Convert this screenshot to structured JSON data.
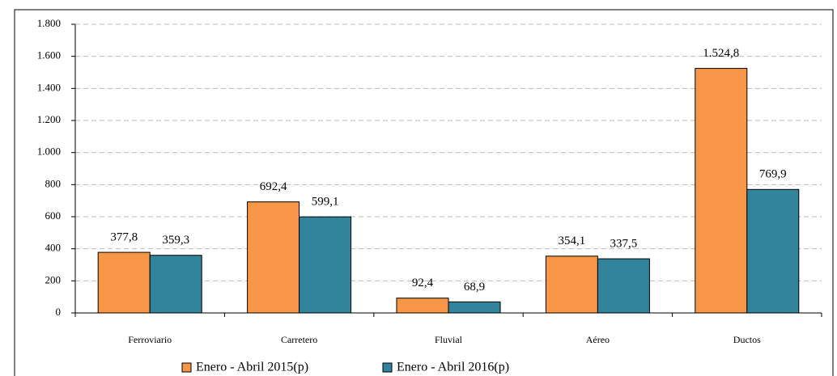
{
  "chart_data": {
    "type": "bar",
    "categories": [
      "Ferroviario",
      "Carretero",
      "Fluvial",
      "Aéreo",
      "Ductos"
    ],
    "series": [
      {
        "name": "Enero - Abril 2015(p)",
        "color": "#F79646",
        "values": [
          377.8,
          692.4,
          92.4,
          354.1,
          1524.8
        ],
        "value_labels": [
          "377,8",
          "692,4",
          "92,4",
          "354,1",
          "1.524,8"
        ]
      },
      {
        "name": "Enero - Abril 2016(p)",
        "color": "#31849B",
        "values": [
          359.3,
          599.1,
          68.9,
          337.5,
          769.9
        ],
        "value_labels": [
          "359,3",
          "599,1",
          "68,9",
          "337,5",
          "769,9"
        ]
      }
    ],
    "ylim": [
      0,
      1800
    ],
    "yticks": [
      0,
      200,
      400,
      600,
      800,
      {
        "value": 1000,
        "label": "1.000"
      },
      {
        "value": 1200,
        "label": "1.200"
      },
      {
        "value": 1400,
        "label": "1.400"
      },
      {
        "value": 1600,
        "label": "1.600"
      },
      {
        "value": 1800,
        "label": "1.800"
      }
    ],
    "grid": true,
    "legend": "bottom"
  }
}
